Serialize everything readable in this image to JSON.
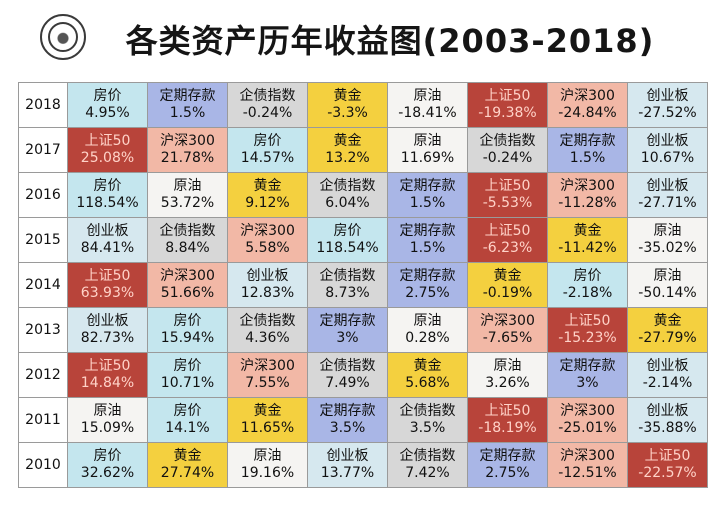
{
  "page": {
    "title": "各类资产历年收益图(2003-2018)"
  },
  "colors": {
    "房价": "#c4e6ee",
    "定期存款": "#a9b6e6",
    "企债指数": "#d7d7d7",
    "黄金": "#f4d03f",
    "原油": "#f5f4f2",
    "上证50": "#b8443a",
    "沪深300": "#f2b8a6",
    "创业板": "#d6e8ef"
  },
  "chart_data": {
    "type": "table",
    "title": "各类资产历年收益图(2003-2018)",
    "columns": [
      "year",
      "rank1",
      "rank2",
      "rank3",
      "rank4",
      "rank5",
      "rank6",
      "rank7",
      "rank8"
    ],
    "rows": [
      {
        "year": "2018",
        "cells": [
          {
            "asset": "房价",
            "return": "4.95%"
          },
          {
            "asset": "定期存款",
            "return": "1.5%"
          },
          {
            "asset": "企债指数",
            "return": "-0.24%"
          },
          {
            "asset": "黄金",
            "return": "-3.3%"
          },
          {
            "asset": "原油",
            "return": "-18.41%"
          },
          {
            "asset": "上证50",
            "return": "-19.38%"
          },
          {
            "asset": "沪深300",
            "return": "-24.84%"
          },
          {
            "asset": "创业板",
            "return": "-27.52%"
          }
        ]
      },
      {
        "year": "2017",
        "cells": [
          {
            "asset": "上证50",
            "return": "25.08%"
          },
          {
            "asset": "沪深300",
            "return": "21.78%"
          },
          {
            "asset": "房价",
            "return": "14.57%"
          },
          {
            "asset": "黄金",
            "return": "13.2%"
          },
          {
            "asset": "原油",
            "return": "11.69%"
          },
          {
            "asset": "企债指数",
            "return": "-0.24%"
          },
          {
            "asset": "定期存款",
            "return": "1.5%"
          },
          {
            "asset": "创业板",
            "return": "10.67%"
          }
        ]
      },
      {
        "year": "2016",
        "cells": [
          {
            "asset": "房价",
            "return": "118.54%"
          },
          {
            "asset": "原油",
            "return": "53.72%"
          },
          {
            "asset": "黄金",
            "return": "9.12%"
          },
          {
            "asset": "企债指数",
            "return": "6.04%"
          },
          {
            "asset": "定期存款",
            "return": "1.5%"
          },
          {
            "asset": "上证50",
            "return": "-5.53%"
          },
          {
            "asset": "沪深300",
            "return": "-11.28%"
          },
          {
            "asset": "创业板",
            "return": "-27.71%"
          }
        ]
      },
      {
        "year": "2015",
        "cells": [
          {
            "asset": "创业板",
            "return": "84.41%"
          },
          {
            "asset": "企债指数",
            "return": "8.84%"
          },
          {
            "asset": "沪深300",
            "return": "5.58%"
          },
          {
            "asset": "房价",
            "return": "118.54%"
          },
          {
            "asset": "定期存款",
            "return": "1.5%"
          },
          {
            "asset": "上证50",
            "return": "-6.23%"
          },
          {
            "asset": "黄金",
            "return": "-11.42%"
          },
          {
            "asset": "原油",
            "return": "-35.02%"
          }
        ]
      },
      {
        "year": "2014",
        "cells": [
          {
            "asset": "上证50",
            "return": "63.93%"
          },
          {
            "asset": "沪深300",
            "return": "51.66%"
          },
          {
            "asset": "创业板",
            "return": "12.83%"
          },
          {
            "asset": "企债指数",
            "return": "8.73%"
          },
          {
            "asset": "定期存款",
            "return": "2.75%"
          },
          {
            "asset": "黄金",
            "return": "-0.19%"
          },
          {
            "asset": "房价",
            "return": "-2.18%"
          },
          {
            "asset": "原油",
            "return": "-50.14%"
          }
        ]
      },
      {
        "year": "2013",
        "cells": [
          {
            "asset": "创业板",
            "return": "82.73%"
          },
          {
            "asset": "房价",
            "return": "15.94%"
          },
          {
            "asset": "企债指数",
            "return": "4.36%"
          },
          {
            "asset": "定期存款",
            "return": "3%"
          },
          {
            "asset": "原油",
            "return": "0.28%"
          },
          {
            "asset": "沪深300",
            "return": "-7.65%"
          },
          {
            "asset": "上证50",
            "return": "-15.23%"
          },
          {
            "asset": "黄金",
            "return": "-27.79%"
          }
        ]
      },
      {
        "year": "2012",
        "cells": [
          {
            "asset": "上证50",
            "return": "14.84%"
          },
          {
            "asset": "房价",
            "return": "10.71%"
          },
          {
            "asset": "沪深300",
            "return": "7.55%"
          },
          {
            "asset": "企债指数",
            "return": "7.49%"
          },
          {
            "asset": "黄金",
            "return": "5.68%"
          },
          {
            "asset": "原油",
            "return": "3.26%"
          },
          {
            "asset": "定期存款",
            "return": "3%"
          },
          {
            "asset": "创业板",
            "return": "-2.14%"
          }
        ]
      },
      {
        "year": "2011",
        "cells": [
          {
            "asset": "原油",
            "return": "15.09%"
          },
          {
            "asset": "房价",
            "return": "14.1%"
          },
          {
            "asset": "黄金",
            "return": "11.65%"
          },
          {
            "asset": "定期存款",
            "return": "3.5%"
          },
          {
            "asset": "企债指数",
            "return": "3.5%"
          },
          {
            "asset": "上证50",
            "return": "-18.19%"
          },
          {
            "asset": "沪深300",
            "return": "-25.01%"
          },
          {
            "asset": "创业板",
            "return": "-35.88%"
          }
        ]
      },
      {
        "year": "2010",
        "cells": [
          {
            "asset": "房价",
            "return": "32.62%"
          },
          {
            "asset": "黄金",
            "return": "27.74%"
          },
          {
            "asset": "原油",
            "return": "19.16%"
          },
          {
            "asset": "创业板",
            "return": "13.77%"
          },
          {
            "asset": "企债指数",
            "return": "7.42%"
          },
          {
            "asset": "定期存款",
            "return": "2.75%"
          },
          {
            "asset": "沪深300",
            "return": "-12.51%"
          },
          {
            "asset": "上证50",
            "return": "-22.57%"
          }
        ]
      }
    ]
  }
}
